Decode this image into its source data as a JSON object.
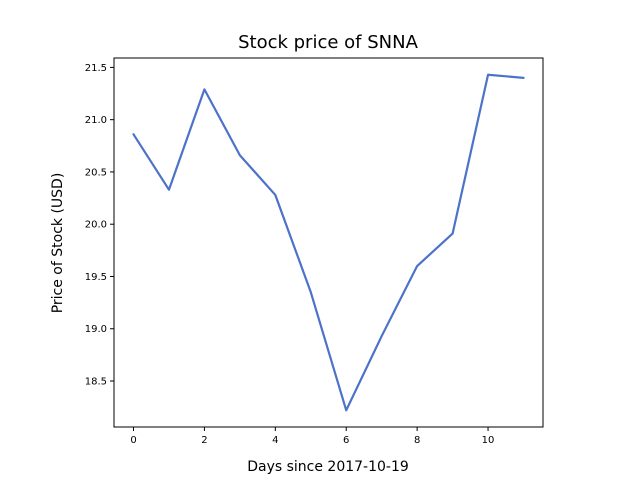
{
  "chart_data": {
    "type": "line",
    "title": "Stock price of SNNA",
    "xlabel": "Days since 2017-10-19",
    "ylabel": "Price of Stock (USD)",
    "x": [
      0,
      1,
      2,
      3,
      4,
      5,
      6,
      7,
      8,
      9,
      10,
      11
    ],
    "series": [
      {
        "name": "",
        "color": "#4c72c9",
        "values": [
          20.86,
          20.33,
          21.29,
          20.66,
          20.28,
          19.35,
          18.22,
          18.93,
          19.6,
          19.91,
          21.43,
          21.4
        ]
      }
    ],
    "xlim": [
      -0.55,
      11.55
    ],
    "ylim": [
      18.06,
      21.59
    ],
    "xticks": [
      0,
      2,
      4,
      6,
      8,
      10
    ],
    "xtick_labels": [
      "0",
      "2",
      "4",
      "6",
      "8",
      "10"
    ],
    "yticks": [
      18.5,
      19.0,
      19.5,
      20.0,
      20.5,
      21.0,
      21.5
    ],
    "ytick_labels": [
      "18.5",
      "19.0",
      "19.5",
      "20.0",
      "20.5",
      "21.0",
      "21.5"
    ],
    "grid": false
  }
}
